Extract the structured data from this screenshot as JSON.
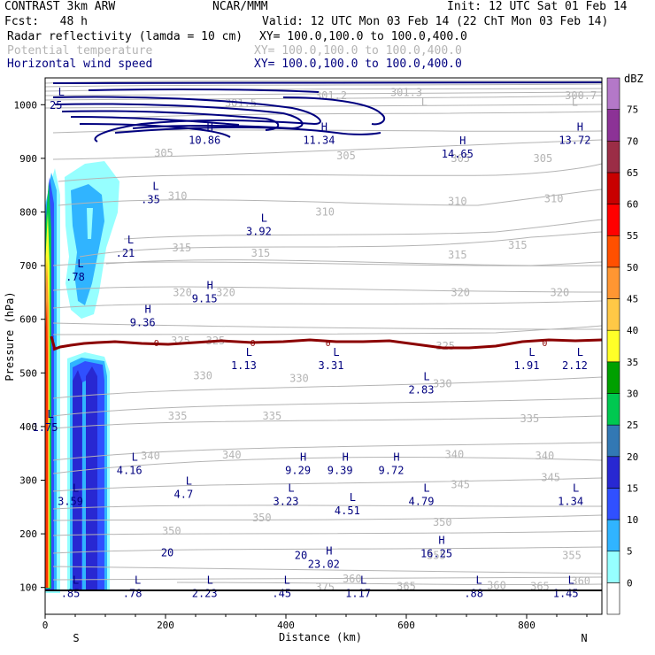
{
  "header": {
    "model": "CONTRAST  3km ARW",
    "center": "NCAR/MMM",
    "init": "Init: 12 UTC Sat 01 Feb 14",
    "fcst": "Fcst:   48 h",
    "valid": "Valid: 12 UTC Mon 03 Feb 14 (22 ChT Mon 03 Feb 14)",
    "fields": [
      {
        "name": "Radar reflectivity (lamda = 10 cm)",
        "xy": "XY= 100.0,100.0 to 100.0,400.0",
        "color": "#000000"
      },
      {
        "name": "Potential temperature",
        "xy": "XY= 100.0,100.0 to 100.0,400.0",
        "color": "#b4b4b4"
      },
      {
        "name": "Horizontal wind speed",
        "xy": "XY= 100.0,100.0 to 100.0,400.0",
        "color": "#00007f"
      }
    ]
  },
  "chart_data": {
    "type": "heatmap",
    "title": "Radar reflectivity / Potential temperature / Horizontal wind speed cross section",
    "xlabel": "Distance (km)",
    "ylabel": "Pressure (hPa)",
    "xlim": [
      0,
      925
    ],
    "ylim": [
      1050,
      50
    ],
    "x_ticks": [
      0,
      200,
      400,
      600,
      800
    ],
    "y_ticks": [
      100,
      200,
      300,
      400,
      500,
      600,
      700,
      800,
      900,
      1000
    ],
    "end_labels": {
      "left": "S",
      "right": "N"
    },
    "colorbar": {
      "unit": "dBZ",
      "levels": [
        0,
        5,
        10,
        15,
        20,
        25,
        30,
        35,
        40,
        45,
        50,
        55,
        60,
        65,
        70,
        75
      ],
      "colors": [
        "#ffffff",
        "#96ffff",
        "#30b4ff",
        "#3050ff",
        "#2828d2",
        "#3278b4",
        "#00c850",
        "#00a000",
        "#ffff28",
        "#ffc846",
        "#ff9632",
        "#ff5000",
        "#ff0000",
        "#c80000",
        "#9b2d46",
        "#8c3296",
        "#b478c8"
      ]
    },
    "theta_contours": {
      "color": "#b4b4b4",
      "labels": [
        {
          "text": "375",
          "x": 465,
          "p": 100
        },
        {
          "text": "360",
          "x": 510,
          "p": 116
        },
        {
          "text": "365",
          "x": 600,
          "p": 102
        },
        {
          "text": "360",
          "x": 750,
          "p": 104
        },
        {
          "text": "365",
          "x": 822,
          "p": 102
        },
        {
          "text": "360",
          "x": 890,
          "p": 112
        },
        {
          "text": "355",
          "x": 650,
          "p": 160
        },
        {
          "text": "355",
          "x": 875,
          "p": 160
        },
        {
          "text": "350",
          "x": 210,
          "p": 205
        },
        {
          "text": "350",
          "x": 360,
          "p": 230
        },
        {
          "text": "350",
          "x": 660,
          "p": 222
        },
        {
          "text": "345",
          "x": 690,
          "p": 292
        },
        {
          "text": "345",
          "x": 840,
          "p": 305
        },
        {
          "text": "340",
          "x": 175,
          "p": 345
        },
        {
          "text": "340",
          "x": 310,
          "p": 347
        },
        {
          "text": "340",
          "x": 680,
          "p": 348
        },
        {
          "text": "340",
          "x": 830,
          "p": 345
        },
        {
          "text": "335",
          "x": 220,
          "p": 420
        },
        {
          "text": "335",
          "x": 377,
          "p": 420
        },
        {
          "text": "335",
          "x": 805,
          "p": 415
        },
        {
          "text": "330",
          "x": 262,
          "p": 495
        },
        {
          "text": "330",
          "x": 422,
          "p": 490
        },
        {
          "text": "330",
          "x": 660,
          "p": 480
        },
        {
          "text": "325",
          "x": 225,
          "p": 560
        },
        {
          "text": "325",
          "x": 283,
          "p": 560
        },
        {
          "text": "325",
          "x": 665,
          "p": 550
        },
        {
          "text": "320",
          "x": 228,
          "p": 650
        },
        {
          "text": "320",
          "x": 300,
          "p": 650
        },
        {
          "text": "320",
          "x": 690,
          "p": 650
        },
        {
          "text": "320",
          "x": 855,
          "p": 650
        },
        {
          "text": "315",
          "x": 227,
          "p": 733
        },
        {
          "text": "315",
          "x": 358,
          "p": 723
        },
        {
          "text": "315",
          "x": 685,
          "p": 720
        },
        {
          "text": "315",
          "x": 785,
          "p": 738
        },
        {
          "text": "310",
          "x": 220,
          "p": 830
        },
        {
          "text": "310",
          "x": 465,
          "p": 800
        },
        {
          "text": "310",
          "x": 685,
          "p": 820
        },
        {
          "text": "310",
          "x": 845,
          "p": 825
        },
        {
          "text": "305",
          "x": 197,
          "p": 910
        },
        {
          "text": "305",
          "x": 500,
          "p": 905
        },
        {
          "text": "305",
          "x": 690,
          "p": 900
        },
        {
          "text": "305",
          "x": 827,
          "p": 900
        },
        {
          "text": "301.5",
          "x": 325,
          "p": 1003
        },
        {
          "text": "301.2",
          "x": 475,
          "p": 1017
        },
        {
          "text": "301.3",
          "x": 600,
          "p": 1023
        },
        {
          "text": "300.7",
          "x": 890,
          "p": 1017
        }
      ],
      "extrema_labels": [
        {
          "text": "L",
          "x": 630,
          "p": 1005
        },
        {
          "text": "L",
          "x": 880,
          "p": 1005
        }
      ]
    },
    "wind_speed": {
      "color": "#00007f",
      "contour_labels": [
        {
          "text": "20",
          "x": 203,
          "p": 165
        },
        {
          "text": "20",
          "x": 425,
          "p": 160
        }
      ],
      "extrema": [
        {
          "type": "L",
          "value": ".85",
          "x": 42,
          "p": 100
        },
        {
          "type": "L",
          "value": ".78",
          "x": 145,
          "p": 100
        },
        {
          "type": "L",
          "value": "2.23",
          "x": 265,
          "p": 100
        },
        {
          "type": "L",
          "value": ".45",
          "x": 393,
          "p": 100
        },
        {
          "type": "L",
          "value": "1.17",
          "x": 520,
          "p": 100
        },
        {
          "type": "L",
          "value": ".88",
          "x": 712,
          "p": 100
        },
        {
          "type": "L",
          "value": "1.45",
          "x": 865,
          "p": 100
        },
        {
          "type": "H",
          "value": "23.02",
          "x": 463,
          "p": 155
        },
        {
          "type": "H",
          "value": "16.25",
          "x": 650,
          "p": 175
        },
        {
          "type": "L",
          "value": "3.59",
          "x": 42,
          "p": 272
        },
        {
          "type": "L",
          "value": "4.7",
          "x": 230,
          "p": 285
        },
        {
          "type": "L",
          "value": "3.23",
          "x": 400,
          "p": 272
        },
        {
          "type": "L",
          "value": "4.51",
          "x": 502,
          "p": 255
        },
        {
          "type": "L",
          "value": "4.79",
          "x": 625,
          "p": 272
        },
        {
          "type": "L",
          "value": "1.34",
          "x": 873,
          "p": 272
        },
        {
          "type": "L",
          "value": "4.16",
          "x": 140,
          "p": 330
        },
        {
          "type": "H",
          "value": "9.29",
          "x": 420,
          "p": 330
        },
        {
          "type": "H",
          "value": "9.39",
          "x": 490,
          "p": 330
        },
        {
          "type": "H",
          "value": "9.72",
          "x": 575,
          "p": 330
        },
        {
          "type": "L",
          "value": "1.75",
          "x": 0,
          "p": 410
        },
        {
          "type": "L",
          "value": "2.83",
          "x": 625,
          "p": 480
        },
        {
          "type": "L",
          "value": "1.13",
          "x": 330,
          "p": 525
        },
        {
          "type": "L",
          "value": "3.31",
          "x": 475,
          "p": 525
        },
        {
          "type": "L",
          "value": "1.91",
          "x": 800,
          "p": 525
        },
        {
          "type": "L",
          "value": "2.12",
          "x": 880,
          "p": 525
        },
        {
          "type": "H",
          "value": "9.36",
          "x": 162,
          "p": 605
        },
        {
          "type": "H",
          "value": "9.15",
          "x": 265,
          "p": 650
        },
        {
          "type": "L",
          "value": ".78",
          "x": 50,
          "p": 690
        },
        {
          "type": "L",
          "value": ".21",
          "x": 133,
          "p": 735
        },
        {
          "type": "L",
          "value": "3.92",
          "x": 355,
          "p": 775
        },
        {
          "type": "L",
          "value": ".35",
          "x": 175,
          "p": 835
        },
        {
          "type": "H",
          "value": "10.86",
          "x": 265,
          "p": 945
        },
        {
          "type": "H",
          "value": "11.34",
          "x": 455,
          "p": 945
        },
        {
          "type": "H",
          "value": "14.65",
          "x": 685,
          "p": 920
        },
        {
          "type": "H",
          "value": "13.72",
          "x": 880,
          "p": 945
        },
        {
          "type": "L",
          "value": "25",
          "x": 18,
          "p": 1010
        }
      ]
    },
    "zero_line": {
      "label": "0",
      "color": "#8b0000",
      "label_x": [
        185,
        345,
        470,
        830
      ]
    }
  }
}
